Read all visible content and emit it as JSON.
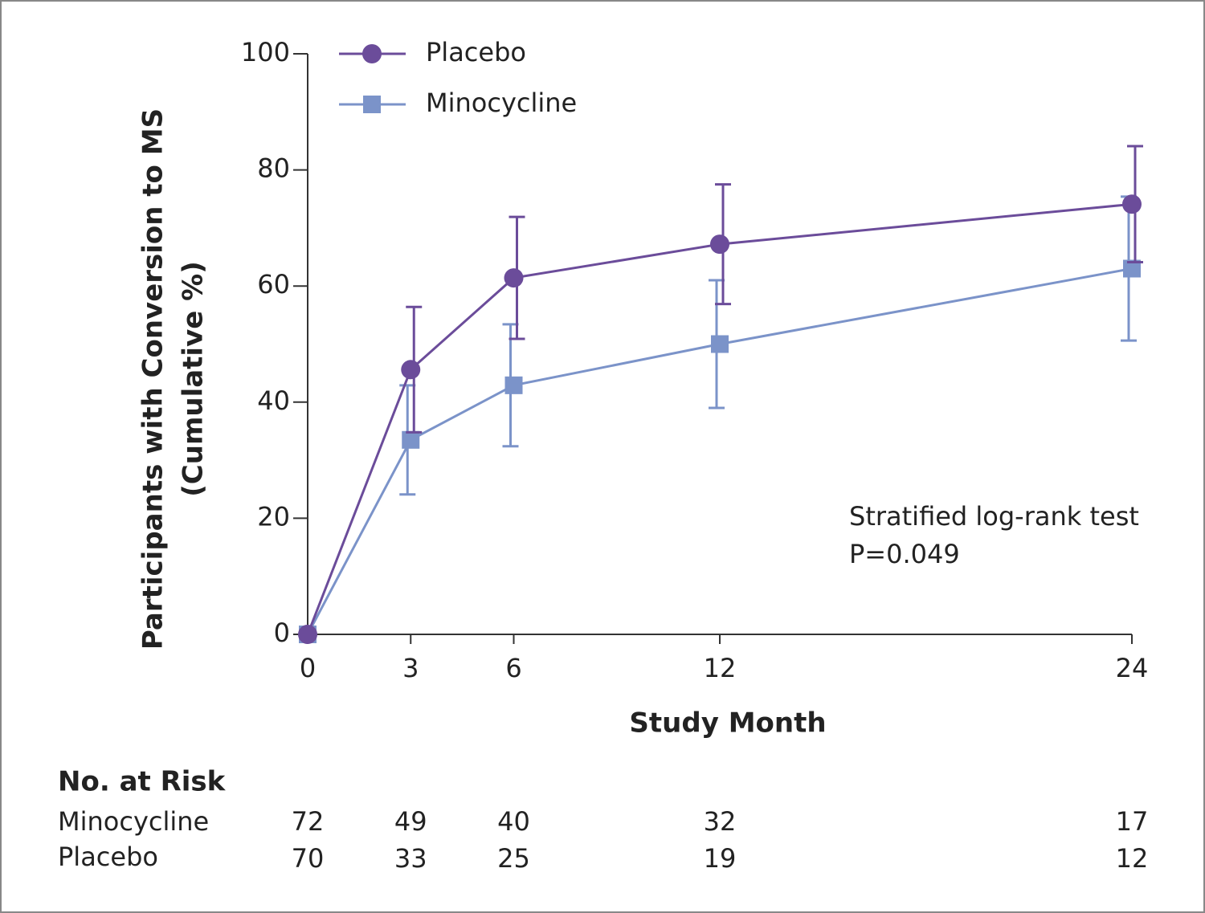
{
  "chart_data": {
    "type": "line",
    "ylabel": [
      "Participants with Conversion to MS",
      "(Cumulative %)"
    ],
    "xlabel": "Study Month",
    "x": [
      0,
      3,
      6,
      12,
      24
    ],
    "xlim": [
      0,
      24
    ],
    "xticks": [
      0,
      3,
      6,
      12,
      24
    ],
    "ylim": [
      0,
      100
    ],
    "yticks": [
      0,
      20,
      40,
      60,
      80,
      100
    ],
    "legend": "top-left",
    "series": [
      {
        "name": "Placebo",
        "color": "#6b4c9a",
        "marker": "circle",
        "values": [
          0,
          45.6,
          61.4,
          67.2,
          74.1
        ],
        "errors": [
          null,
          10.8,
          10.5,
          10.3,
          10.0
        ]
      },
      {
        "name": "Minocycline",
        "color": "#7b93c9",
        "marker": "square",
        "values": [
          0,
          33.5,
          42.9,
          50.0,
          63.0
        ],
        "errors": [
          null,
          9.4,
          10.5,
          11.0,
          12.4
        ]
      }
    ],
    "annotations": [
      "Stratified log-rank test",
      "P=0.049"
    ],
    "at_risk": {
      "title": "No. at Risk",
      "rows": [
        {
          "name": "Minocycline",
          "values": [
            72,
            49,
            40,
            32,
            17
          ]
        },
        {
          "name": "Placebo",
          "values": [
            70,
            33,
            25,
            19,
            12
          ]
        }
      ]
    }
  }
}
